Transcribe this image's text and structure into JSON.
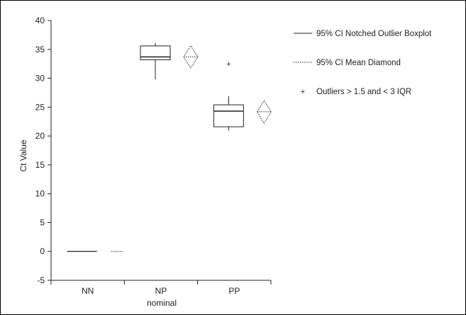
{
  "chart_data": {
    "type": "boxplot",
    "xlabel": "nominal",
    "ylabel": "Ct Value",
    "ylim": [
      -5,
      40
    ],
    "yticks": [
      -5,
      0,
      5,
      10,
      15,
      20,
      25,
      30,
      35,
      40
    ],
    "categories": [
      "NN",
      "NP",
      "PP"
    ],
    "legend_position": "top-right",
    "legend": [
      {
        "label": "95% CI Notched Outlier Boxplot",
        "style": "solid-line"
      },
      {
        "label": "95% CI Mean Diamond",
        "style": "dotted-line"
      },
      {
        "label": "Outliers > 1.5 and < 3 IQR",
        "style": "plus-marker"
      }
    ],
    "boxes": [
      {
        "category": "NN",
        "min": 0,
        "q1": 0,
        "median": 0,
        "q3": 0,
        "max": 0,
        "outliers": []
      },
      {
        "category": "NP",
        "min": 29.8,
        "q1": 33.2,
        "median": 33.7,
        "q3": 35.6,
        "max": 36.1,
        "outliers": []
      },
      {
        "category": "PP",
        "min": 20.9,
        "q1": 21.6,
        "median": 24.3,
        "q3": 25.4,
        "max": 26.9,
        "outliers": [
          32.5
        ]
      }
    ],
    "mean_diamonds": [
      {
        "category": "NN",
        "mean": 0,
        "lower": 0,
        "upper": 0
      },
      {
        "category": "NP",
        "mean": 33.7,
        "lower": 31.8,
        "upper": 35.6
      },
      {
        "category": "PP",
        "mean": 24.2,
        "lower": 22.2,
        "upper": 26.1
      }
    ],
    "colors": {
      "line": "#222222",
      "background": "#ffffff"
    }
  }
}
